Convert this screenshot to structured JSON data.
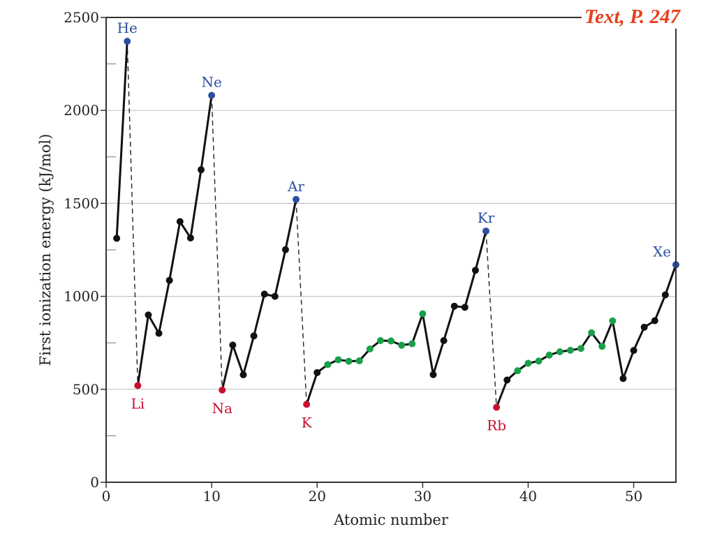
{
  "colors": {
    "noble": "#2b4fa0",
    "alkali": "#c8102e",
    "transition": "#18a04a",
    "main": "#111111",
    "grid": "#c6c6c6",
    "note": "#e8401c"
  },
  "corner_note": "Text, P. 247",
  "chart_data": {
    "type": "line",
    "xlabel": "Atomic number",
    "ylabel": "First ionization energy (kJ/mol)",
    "xlim": [
      0,
      54
    ],
    "ylim": [
      0,
      2500
    ],
    "xticks": [
      0,
      10,
      20,
      30,
      40,
      50
    ],
    "yticks": [
      0,
      500,
      1000,
      1500,
      2000,
      2500
    ],
    "grid": "horizontal",
    "series": [
      {
        "group": "elements",
        "x": [
          1,
          2,
          3,
          4,
          5,
          6,
          7,
          8,
          9,
          10,
          11,
          12,
          13,
          14,
          15,
          16,
          17,
          18,
          19,
          20,
          21,
          22,
          23,
          24,
          25,
          26,
          27,
          28,
          29,
          30,
          31,
          32,
          33,
          34,
          35,
          36,
          37,
          38,
          39,
          40,
          41,
          42,
          43,
          44,
          45,
          46,
          47,
          48,
          49,
          50,
          51,
          52,
          53,
          54
        ],
        "y": [
          1312,
          2372,
          520,
          900,
          801,
          1086,
          1402,
          1314,
          1681,
          2081,
          496,
          738,
          578,
          787,
          1012,
          1000,
          1251,
          1521,
          419,
          590,
          633,
          659,
          651,
          653,
          717,
          762,
          760,
          737,
          745,
          906,
          579,
          762,
          947,
          941,
          1140,
          1351,
          403,
          550,
          600,
          640,
          652,
          684,
          702,
          710,
          720,
          804,
          731,
          868,
          558,
          709,
          834,
          869,
          1008,
          1170
        ],
        "kind": [
          "main",
          "noble",
          "alkali",
          "main",
          "main",
          "main",
          "main",
          "main",
          "main",
          "noble",
          "alkali",
          "main",
          "main",
          "main",
          "main",
          "main",
          "main",
          "noble",
          "alkali",
          "main",
          "transition",
          "transition",
          "transition",
          "transition",
          "transition",
          "transition",
          "transition",
          "transition",
          "transition",
          "transition",
          "main",
          "main",
          "main",
          "main",
          "main",
          "noble",
          "alkali",
          "main",
          "transition",
          "transition",
          "transition",
          "transition",
          "transition",
          "transition",
          "transition",
          "transition",
          "transition",
          "transition",
          "main",
          "main",
          "main",
          "main",
          "main",
          "noble"
        ]
      }
    ],
    "drops": [
      [
        2,
        3
      ],
      [
        10,
        11
      ],
      [
        18,
        19
      ],
      [
        36,
        37
      ]
    ],
    "labels": [
      {
        "text": "He",
        "x": 2,
        "pos": "above",
        "kind": "noble"
      },
      {
        "text": "Ne",
        "x": 10,
        "pos": "above",
        "kind": "noble"
      },
      {
        "text": "Ar",
        "x": 18,
        "pos": "above",
        "kind": "noble"
      },
      {
        "text": "Kr",
        "x": 36,
        "pos": "above",
        "kind": "noble"
      },
      {
        "text": "Xe",
        "x": 54,
        "pos": "above-left",
        "kind": "noble"
      },
      {
        "text": "Li",
        "x": 3,
        "pos": "below",
        "kind": "alkali"
      },
      {
        "text": "Na",
        "x": 11,
        "pos": "below",
        "kind": "alkali"
      },
      {
        "text": "K",
        "x": 19,
        "pos": "below",
        "kind": "alkali"
      },
      {
        "text": "Rb",
        "x": 37,
        "pos": "below",
        "kind": "alkali"
      }
    ]
  }
}
